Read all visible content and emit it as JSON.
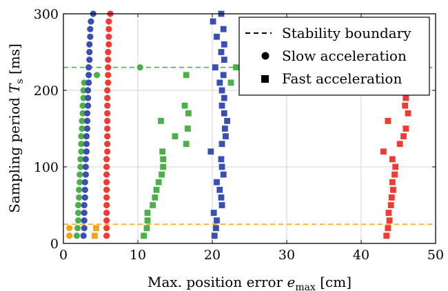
{
  "chart_data": {
    "type": "scatter",
    "xlabel_main": "Max. position error ",
    "xlabel_var": "e",
    "xlabel_sub": "max",
    "xlabel_unit": " [cm]",
    "ylabel_main": "Sampling period ",
    "ylabel_var": "T",
    "ylabel_sub": "s",
    "ylabel_unit": " [ms]",
    "xlim": [
      0,
      50
    ],
    "ylim": [
      0,
      300
    ],
    "xticks": [
      0,
      10,
      20,
      30,
      40,
      50
    ],
    "yticks": [
      0,
      100,
      200,
      300
    ],
    "grid": true,
    "legend_position": "top-right",
    "legend": {
      "boundary_label": "Stability boundary",
      "slow_label": "Slow acceleration",
      "fast_label": "Fast acceleration"
    },
    "colors": {
      "orange": "#f5a11a",
      "green": "#4daf4a",
      "blue": "#3a4fb2",
      "red": "#ef3b32"
    },
    "boundaries": [
      {
        "color": "green",
        "y": 230
      },
      {
        "color": "orange",
        "y": 25
      }
    ],
    "series": [
      {
        "color": "orange",
        "marker": "circle",
        "points": [
          [
            0.8,
            10
          ],
          [
            0.8,
            20
          ]
        ]
      },
      {
        "color": "orange",
        "marker": "square",
        "points": [
          [
            4.2,
            10
          ],
          [
            4.4,
            20
          ]
        ]
      },
      {
        "color": "green",
        "marker": "circle",
        "points": [
          [
            1.8,
            10
          ],
          [
            1.9,
            20
          ],
          [
            2.0,
            30
          ],
          [
            2.0,
            40
          ],
          [
            2.0,
            50
          ],
          [
            2.1,
            60
          ],
          [
            2.1,
            70
          ],
          [
            2.2,
            80
          ],
          [
            2.2,
            90
          ],
          [
            2.3,
            100
          ],
          [
            2.3,
            110
          ],
          [
            2.4,
            120
          ],
          [
            2.4,
            130
          ],
          [
            2.4,
            140
          ],
          [
            2.5,
            150
          ],
          [
            2.5,
            160
          ],
          [
            2.6,
            170
          ],
          [
            2.6,
            180
          ],
          [
            2.7,
            190
          ],
          [
            2.7,
            200
          ],
          [
            2.8,
            210
          ],
          [
            4.5,
            220
          ],
          [
            10.3,
            230
          ]
        ]
      },
      {
        "color": "green",
        "marker": "square",
        "points": [
          [
            10.8,
            10
          ],
          [
            11.2,
            20
          ],
          [
            11.3,
            30
          ],
          [
            11.3,
            40
          ],
          [
            12.0,
            50
          ],
          [
            12.3,
            60
          ],
          [
            12.5,
            70
          ],
          [
            12.8,
            80
          ],
          [
            13.2,
            90
          ],
          [
            13.4,
            100
          ],
          [
            13.4,
            110
          ],
          [
            13.3,
            120
          ],
          [
            16.5,
            130
          ],
          [
            16.7,
            150
          ],
          [
            15.0,
            140
          ],
          [
            13.1,
            160
          ],
          [
            16.8,
            170
          ],
          [
            16.3,
            180
          ],
          [
            22.5,
            210
          ],
          [
            16.5,
            220
          ],
          [
            23.2,
            230
          ]
        ]
      },
      {
        "color": "blue",
        "marker": "circle",
        "points": [
          [
            2.7,
            10
          ],
          [
            2.8,
            20
          ],
          [
            2.8,
            30
          ],
          [
            2.8,
            40
          ],
          [
            2.8,
            50
          ],
          [
            2.9,
            60
          ],
          [
            2.9,
            70
          ],
          [
            2.9,
            80
          ],
          [
            3.0,
            90
          ],
          [
            3.0,
            100
          ],
          [
            3.0,
            110
          ],
          [
            3.1,
            120
          ],
          [
            3.1,
            130
          ],
          [
            3.1,
            140
          ],
          [
            3.2,
            150
          ],
          [
            3.2,
            160
          ],
          [
            3.2,
            170
          ],
          [
            3.3,
            180
          ],
          [
            3.3,
            190
          ],
          [
            3.3,
            200
          ],
          [
            3.4,
            210
          ],
          [
            3.4,
            220
          ],
          [
            3.4,
            230
          ],
          [
            3.5,
            240
          ],
          [
            3.5,
            250
          ],
          [
            3.5,
            260
          ],
          [
            3.6,
            270
          ],
          [
            3.6,
            280
          ],
          [
            3.7,
            290
          ],
          [
            4.0,
            300
          ]
        ]
      },
      {
        "color": "blue",
        "marker": "square",
        "points": [
          [
            20.3,
            10
          ],
          [
            20.5,
            20
          ],
          [
            20.6,
            30
          ],
          [
            20.2,
            40
          ],
          [
            21.3,
            50
          ],
          [
            21.2,
            60
          ],
          [
            21.0,
            70
          ],
          [
            20.6,
            80
          ],
          [
            21.5,
            90
          ],
          [
            21.3,
            100
          ],
          [
            21.2,
            110
          ],
          [
            19.8,
            120
          ],
          [
            21.3,
            130
          ],
          [
            21.8,
            140
          ],
          [
            21.7,
            150
          ],
          [
            22.0,
            160
          ],
          [
            21.6,
            170
          ],
          [
            21.3,
            180
          ],
          [
            21.6,
            190
          ],
          [
            21.3,
            200
          ],
          [
            21.0,
            210
          ],
          [
            21.5,
            220
          ],
          [
            20.4,
            230
          ],
          [
            21.6,
            240
          ],
          [
            21.2,
            250
          ],
          [
            21.6,
            260
          ],
          [
            20.6,
            270
          ],
          [
            21.5,
            280
          ],
          [
            20.1,
            290
          ],
          [
            21.2,
            300
          ]
        ]
      },
      {
        "color": "red",
        "marker": "circle",
        "points": [
          [
            5.8,
            10
          ],
          [
            5.8,
            20
          ],
          [
            5.8,
            30
          ],
          [
            5.8,
            40
          ],
          [
            5.8,
            50
          ],
          [
            5.8,
            60
          ],
          [
            5.8,
            70
          ],
          [
            5.8,
            80
          ],
          [
            5.8,
            90
          ],
          [
            5.8,
            100
          ],
          [
            5.8,
            110
          ],
          [
            5.9,
            120
          ],
          [
            5.9,
            130
          ],
          [
            5.9,
            140
          ],
          [
            5.9,
            150
          ],
          [
            5.9,
            160
          ],
          [
            5.9,
            170
          ],
          [
            5.9,
            180
          ],
          [
            5.9,
            190
          ],
          [
            5.9,
            200
          ],
          [
            6.0,
            210
          ],
          [
            6.0,
            220
          ],
          [
            6.0,
            230
          ],
          [
            6.0,
            240
          ],
          [
            6.0,
            250
          ],
          [
            6.1,
            260
          ],
          [
            6.1,
            270
          ],
          [
            6.1,
            280
          ],
          [
            6.1,
            290
          ],
          [
            6.3,
            300
          ]
        ]
      },
      {
        "color": "red",
        "marker": "square",
        "points": [
          [
            43.4,
            10
          ],
          [
            43.6,
            20
          ],
          [
            43.8,
            30
          ],
          [
            43.7,
            40
          ],
          [
            44.0,
            50
          ],
          [
            44.1,
            60
          ],
          [
            44.3,
            70
          ],
          [
            44.2,
            80
          ],
          [
            44.5,
            90
          ],
          [
            44.6,
            100
          ],
          [
            44.2,
            110
          ],
          [
            43.0,
            120
          ],
          [
            45.2,
            130
          ],
          [
            45.7,
            140
          ],
          [
            46.0,
            150
          ],
          [
            43.6,
            160
          ],
          [
            46.3,
            170
          ],
          [
            45.9,
            180
          ],
          [
            46.0,
            190
          ]
        ]
      }
    ]
  }
}
